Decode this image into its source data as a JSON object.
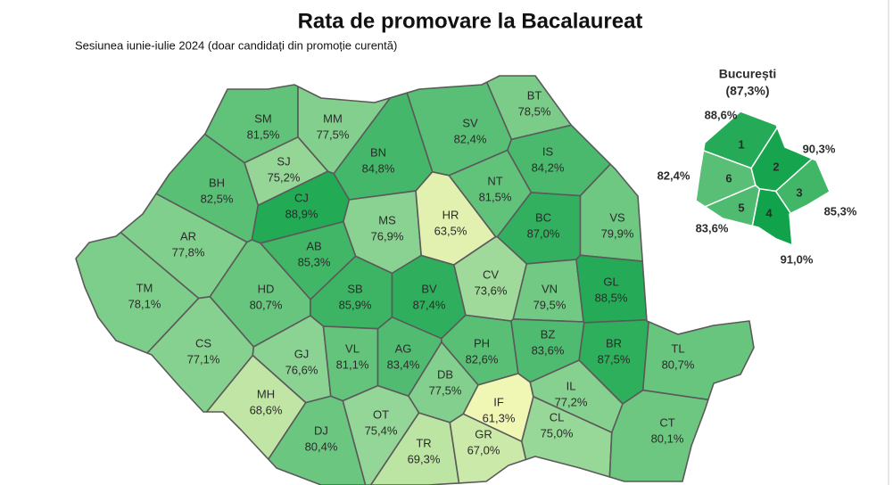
{
  "title": "Rata de promovare la Bacalaureat",
  "subtitle": "Sesiunea iunie-iulie 2024 (doar candidați din promoție curentă)",
  "colors": [
    "#f0f6b4",
    "#8fd495",
    "#10a34b"
  ],
  "counties": [
    {
      "code": "SM",
      "value": 81.5,
      "value_label": "81,5%"
    },
    {
      "code": "MM",
      "value": 77.5,
      "value_label": "77,5%"
    },
    {
      "code": "BT",
      "value": 78.5,
      "value_label": "78,5%"
    },
    {
      "code": "SV",
      "value": 82.4,
      "value_label": "82,4%"
    },
    {
      "code": "BN",
      "value": 84.8,
      "value_label": "84,8%"
    },
    {
      "code": "SJ",
      "value": 75.2,
      "value_label": "75,2%"
    },
    {
      "code": "IS",
      "value": 84.2,
      "value_label": "84,2%"
    },
    {
      "code": "BH",
      "value": 82.5,
      "value_label": "82,5%"
    },
    {
      "code": "CJ",
      "value": 88.9,
      "value_label": "88,9%"
    },
    {
      "code": "NT",
      "value": 81.5,
      "value_label": "81,5%"
    },
    {
      "code": "MS",
      "value": 76.9,
      "value_label": "76,9%"
    },
    {
      "code": "HR",
      "value": 63.5,
      "value_label": "63,5%"
    },
    {
      "code": "BC",
      "value": 87.0,
      "value_label": "87,0%"
    },
    {
      "code": "VS",
      "value": 79.9,
      "value_label": "79,9%"
    },
    {
      "code": "AR",
      "value": 77.8,
      "value_label": "77,8%"
    },
    {
      "code": "AB",
      "value": 85.3,
      "value_label": "85,3%"
    },
    {
      "code": "CV",
      "value": 73.6,
      "value_label": "73,6%"
    },
    {
      "code": "TM",
      "value": 78.1,
      "value_label": "78,1%"
    },
    {
      "code": "HD",
      "value": 80.7,
      "value_label": "80,7%"
    },
    {
      "code": "SB",
      "value": 85.9,
      "value_label": "85,9%"
    },
    {
      "code": "BV",
      "value": 87.4,
      "value_label": "87,4%"
    },
    {
      "code": "VN",
      "value": 79.5,
      "value_label": "79,5%"
    },
    {
      "code": "GL",
      "value": 88.5,
      "value_label": "88,5%"
    },
    {
      "code": "CS",
      "value": 77.1,
      "value_label": "77,1%"
    },
    {
      "code": "GJ",
      "value": 76.6,
      "value_label": "76,6%"
    },
    {
      "code": "VL",
      "value": 81.1,
      "value_label": "81,1%"
    },
    {
      "code": "AG",
      "value": 83.4,
      "value_label": "83,4%"
    },
    {
      "code": "PH",
      "value": 82.6,
      "value_label": "82,6%"
    },
    {
      "code": "BZ",
      "value": 83.6,
      "value_label": "83,6%"
    },
    {
      "code": "BR",
      "value": 87.5,
      "value_label": "87,5%"
    },
    {
      "code": "TL",
      "value": 80.7,
      "value_label": "80,7%"
    },
    {
      "code": "DB",
      "value": 77.5,
      "value_label": "77,5%"
    },
    {
      "code": "MH",
      "value": 68.6,
      "value_label": "68,6%"
    },
    {
      "code": "IF",
      "value": 61.3,
      "value_label": "61,3%"
    },
    {
      "code": "IL",
      "value": 77.2,
      "value_label": "77,2%"
    },
    {
      "code": "OT",
      "value": 75.4,
      "value_label": "75,4%"
    },
    {
      "code": "CL",
      "value": 75.0,
      "value_label": "75,0%"
    },
    {
      "code": "DJ",
      "value": 80.4,
      "value_label": "80,4%"
    },
    {
      "code": "TR",
      "value": 69.3,
      "value_label": "69,3%"
    },
    {
      "code": "GR",
      "value": 67.0,
      "value_label": "67,0%"
    },
    {
      "code": "CT",
      "value": 80.1,
      "value_label": "80,1%"
    }
  ],
  "bucharest": {
    "name": "București",
    "value": 87.3,
    "value_label": "(87,3%)",
    "sectors": [
      {
        "label": "1",
        "value": 88.6,
        "value_label": "88,6%"
      },
      {
        "label": "2",
        "value": 90.3,
        "value_label": "90,3%"
      },
      {
        "label": "3",
        "value": 85.3,
        "value_label": "85,3%"
      },
      {
        "label": "4",
        "value": 91.0,
        "value_label": "91,0%"
      },
      {
        "label": "5",
        "value": 83.6,
        "value_label": "83,6%"
      },
      {
        "label": "6",
        "value": 82.4,
        "value_label": "82,4%"
      }
    ]
  }
}
